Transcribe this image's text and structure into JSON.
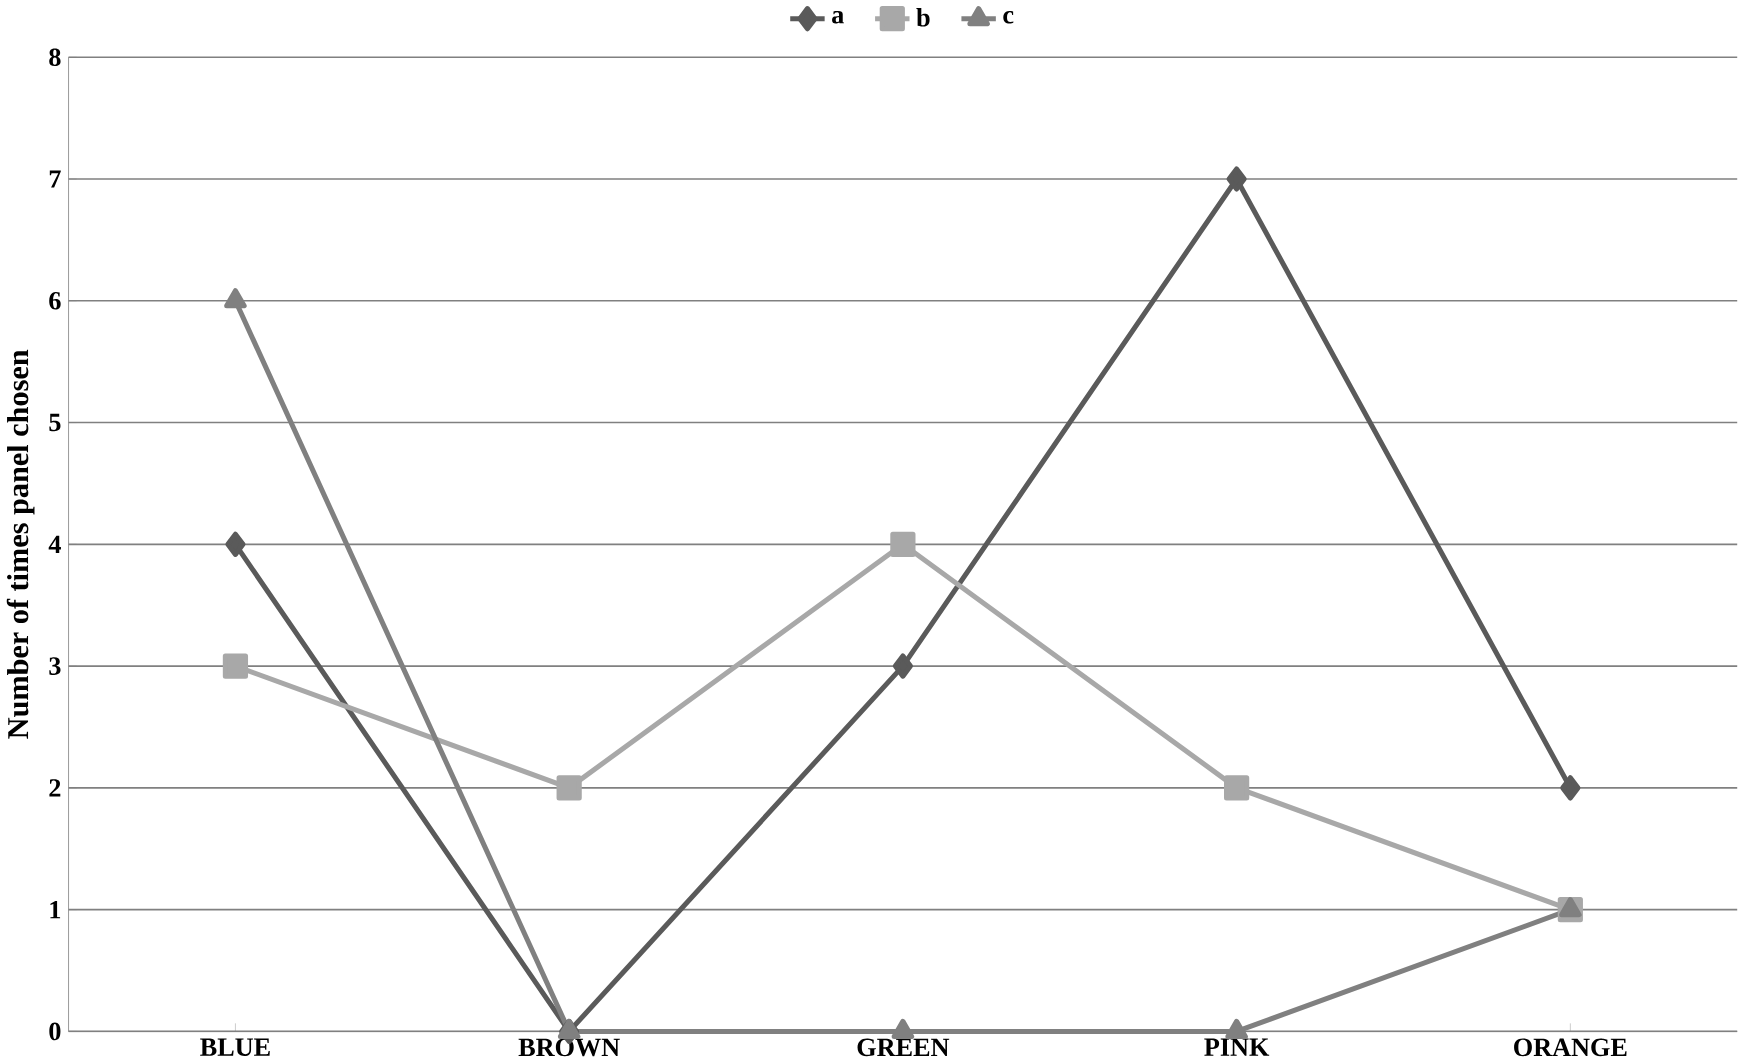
{
  "chart_data": {
    "type": "line",
    "ylabel": "Number of times panel chosen",
    "categories": [
      "BLUE",
      "BROWN",
      "GREEN",
      "PINK",
      "ORANGE"
    ],
    "series": [
      {
        "name": "a",
        "color": "#5a5a5a",
        "values": [
          4,
          0,
          3,
          7,
          2
        ],
        "marker": "diamond"
      },
      {
        "name": "b",
        "color": "#a8a8a8",
        "values": [
          3,
          2,
          4,
          2,
          1
        ],
        "marker": "square"
      },
      {
        "name": "c",
        "color": "#808080",
        "values": [
          6,
          0,
          0,
          0,
          1
        ],
        "marker": "triangle"
      }
    ],
    "ylim": [
      0,
      8
    ],
    "yticks": [
      0,
      1,
      2,
      3,
      4,
      5,
      6,
      7,
      8
    ],
    "grid": "y",
    "legend": "top",
    "line_style": "solid"
  }
}
